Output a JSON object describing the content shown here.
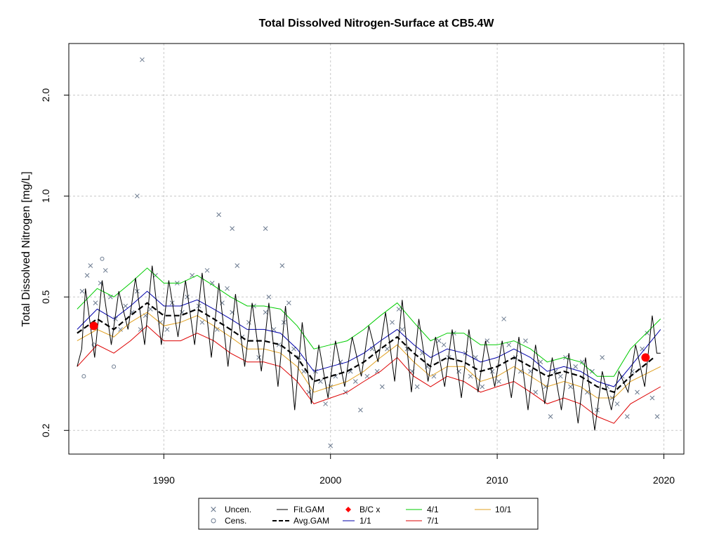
{
  "chart_data": {
    "type": "line",
    "title": "Total Dissolved Nitrogen-Surface at CB5.4W",
    "xlabel": "",
    "ylabel": "Total Dissolved Nitrogen [mg/L]",
    "y_scale": "log",
    "xlim": [
      1984.3,
      2021.2
    ],
    "ylim": [
      0.17,
      2.85
    ],
    "x_ticks": [
      1990,
      2000,
      2010,
      2020
    ],
    "y_ticks": [
      0.2,
      0.5,
      1.0,
      2.0
    ],
    "x_tick_labels": [
      "1990",
      "2000",
      "2010",
      "2020"
    ],
    "y_tick_labels": [
      "0.2",
      "0.5",
      "1.0",
      "2.0"
    ],
    "grid": true,
    "legend_position": "bottom",
    "legend": [
      {
        "label": "Uncen.",
        "symbol": "x",
        "color": "#6b7a8f"
      },
      {
        "label": "Cens.",
        "symbol": "o",
        "color": "#6b7a8f"
      },
      {
        "label": "Fit.GAM",
        "symbol": "line",
        "color": "#000000"
      },
      {
        "label": "Avg.GAM",
        "symbol": "dash",
        "color": "#000000"
      },
      {
        "label": "B/C x",
        "symbol": "diamond",
        "color": "#ff0000"
      },
      {
        "label": "1/1",
        "symbol": "line",
        "color": "#0000aa"
      },
      {
        "label": "4/1",
        "symbol": "line",
        "color": "#00cc00"
      },
      {
        "label": "7/1",
        "symbol": "line",
        "color": "#dd0000"
      },
      {
        "label": "10/1",
        "symbol": "line",
        "color": "#e0a020"
      }
    ],
    "series": [
      {
        "name": "Avg.GAM",
        "color": "#000000",
        "style": "dashed",
        "x": [
          1984.8,
          1986,
          1987,
          1988,
          1989,
          1990,
          1991,
          1992,
          1993,
          1994,
          1995,
          1996,
          1997,
          1998,
          1999,
          2000,
          2001,
          2002,
          2003,
          2004,
          2005,
          2006,
          2007,
          2008,
          2009,
          2010,
          2011,
          2012,
          2013,
          2014,
          2015,
          2016,
          2017,
          2018,
          2019.4
        ],
        "y": [
          0.39,
          0.43,
          0.4,
          0.44,
          0.48,
          0.44,
          0.44,
          0.46,
          0.43,
          0.4,
          0.37,
          0.37,
          0.36,
          0.33,
          0.28,
          0.29,
          0.3,
          0.32,
          0.35,
          0.38,
          0.34,
          0.31,
          0.33,
          0.32,
          0.3,
          0.31,
          0.33,
          0.31,
          0.29,
          0.3,
          0.29,
          0.27,
          0.26,
          0.29,
          0.33
        ]
      },
      {
        "name": "1/1",
        "color": "#0000aa",
        "style": "solid",
        "x": [
          1984.8,
          1986,
          1987,
          1988,
          1989,
          1990,
          1991,
          1992,
          1993,
          1994,
          1995,
          1996,
          1997,
          1998,
          1999,
          2000,
          2001,
          2002,
          2003,
          2004,
          2005,
          2006,
          2007,
          2008,
          2009,
          2010,
          2011,
          2012,
          2013,
          2014,
          2015,
          2016,
          2017,
          2018,
          2019.8
        ],
        "y": [
          0.4,
          0.46,
          0.43,
          0.47,
          0.52,
          0.47,
          0.47,
          0.49,
          0.46,
          0.43,
          0.4,
          0.4,
          0.39,
          0.35,
          0.3,
          0.31,
          0.32,
          0.34,
          0.37,
          0.4,
          0.36,
          0.33,
          0.35,
          0.34,
          0.32,
          0.33,
          0.35,
          0.33,
          0.3,
          0.31,
          0.3,
          0.28,
          0.27,
          0.31,
          0.4
        ]
      },
      {
        "name": "4/1",
        "color": "#00cc00",
        "style": "solid",
        "x": [
          1984.8,
          1986,
          1987,
          1988,
          1989,
          1990,
          1991,
          1992,
          1993,
          1994,
          1995,
          1996,
          1997,
          1998,
          1999,
          2000,
          2001,
          2002,
          2003,
          2004,
          2005,
          2006,
          2007,
          2008,
          2009,
          2010,
          2011,
          2012,
          2013,
          2014,
          2015,
          2016,
          2017,
          2018,
          2019.8
        ],
        "y": [
          0.46,
          0.53,
          0.5,
          0.55,
          0.61,
          0.55,
          0.55,
          0.58,
          0.54,
          0.5,
          0.47,
          0.47,
          0.46,
          0.41,
          0.35,
          0.36,
          0.37,
          0.4,
          0.44,
          0.48,
          0.42,
          0.37,
          0.39,
          0.39,
          0.36,
          0.36,
          0.37,
          0.35,
          0.32,
          0.33,
          0.32,
          0.29,
          0.29,
          0.35,
          0.43
        ]
      },
      {
        "name": "7/1",
        "color": "#dd0000",
        "style": "solid",
        "x": [
          1984.8,
          1986,
          1987,
          1988,
          1989,
          1990,
          1991,
          1992,
          1993,
          1994,
          1995,
          1996,
          1997,
          1998,
          1999,
          2000,
          2001,
          2002,
          2003,
          2004,
          2005,
          2006,
          2007,
          2008,
          2009,
          2010,
          2011,
          2012,
          2013,
          2014,
          2015,
          2016,
          2017,
          2018,
          2019.8
        ],
        "y": [
          0.31,
          0.36,
          0.34,
          0.37,
          0.41,
          0.37,
          0.37,
          0.39,
          0.37,
          0.34,
          0.32,
          0.32,
          0.31,
          0.28,
          0.24,
          0.25,
          0.26,
          0.28,
          0.3,
          0.33,
          0.29,
          0.27,
          0.29,
          0.28,
          0.26,
          0.27,
          0.28,
          0.26,
          0.24,
          0.25,
          0.24,
          0.22,
          0.21,
          0.24,
          0.27
        ]
      },
      {
        "name": "10/1",
        "color": "#e0a020",
        "style": "solid",
        "x": [
          1984.8,
          1986,
          1987,
          1988,
          1989,
          1990,
          1991,
          1992,
          1993,
          1994,
          1995,
          1996,
          1997,
          1998,
          1999,
          2000,
          2001,
          2002,
          2003,
          2004,
          2005,
          2006,
          2007,
          2008,
          2009,
          2010,
          2011,
          2012,
          2013,
          2014,
          2015,
          2016,
          2017,
          2018,
          2019.8
        ],
        "y": [
          0.37,
          0.4,
          0.38,
          0.42,
          0.45,
          0.41,
          0.42,
          0.44,
          0.41,
          0.38,
          0.35,
          0.35,
          0.34,
          0.31,
          0.26,
          0.27,
          0.28,
          0.3,
          0.33,
          0.36,
          0.32,
          0.29,
          0.31,
          0.31,
          0.28,
          0.29,
          0.31,
          0.29,
          0.27,
          0.28,
          0.27,
          0.25,
          0.25,
          0.28,
          0.31
        ]
      },
      {
        "name": "Fit.GAM",
        "color": "#000000",
        "style": "solid",
        "seasonal": true,
        "x": [
          1984.8,
          1985.3,
          1986.3,
          1987.3,
          1988.3,
          1989.3,
          1990.3,
          1991.3,
          1992.3,
          1993.3,
          1994.3,
          1995.3,
          1996.3,
          1997.3,
          1998.3,
          1999.3,
          2000.3,
          2001.3,
          2002.3,
          2003.3,
          2004.3,
          2005.3,
          2006.3,
          2007.3,
          2008.3,
          2009.3,
          2010.3,
          2011.3,
          2012.3,
          2013.3,
          2014.3,
          2015.3,
          2016.3,
          2017.3,
          2018.3,
          2019.3,
          2019.8
        ],
        "y": [
          0.31,
          0.53,
          0.56,
          0.52,
          0.57,
          0.62,
          0.56,
          0.56,
          0.59,
          0.55,
          0.51,
          0.48,
          0.48,
          0.47,
          0.42,
          0.36,
          0.37,
          0.38,
          0.41,
          0.45,
          0.49,
          0.43,
          0.38,
          0.4,
          0.4,
          0.37,
          0.37,
          0.38,
          0.36,
          0.33,
          0.34,
          0.33,
          0.3,
          0.3,
          0.36,
          0.44,
          0.34
        ],
        "y_low": [
          0.31,
          0.35,
          0.33,
          0.36,
          0.4,
          0.36,
          0.36,
          0.38,
          0.36,
          0.33,
          0.31,
          0.31,
          0.3,
          0.27,
          0.23,
          0.24,
          0.25,
          0.27,
          0.29,
          0.32,
          0.28,
          0.26,
          0.28,
          0.27,
          0.25,
          0.26,
          0.27,
          0.25,
          0.23,
          0.24,
          0.23,
          0.21,
          0.2,
          0.23,
          0.26,
          0.27,
          0.34
        ]
      },
      {
        "name": "B/C x",
        "color": "#ff0000",
        "x": [
          1985.8,
          2018.9
        ],
        "y": [
          0.41,
          0.33
        ]
      },
      {
        "name": "Uncen.",
        "color": "#6b7a8f",
        "x": [
          1985.1,
          1985.4,
          1985.6,
          1985.9,
          1986.2,
          1986.5,
          1986.8,
          1987.1,
          1987.4,
          1987.7,
          1988.1,
          1988.4,
          1988.6,
          1988.9,
          1989.2,
          1989.5,
          1989.8,
          1990.2,
          1990.5,
          1990.8,
          1991.1,
          1991.4,
          1991.7,
          1992.1,
          1992.3,
          1992.6,
          1992.9,
          1993.2,
          1993.5,
          1993.8,
          1994.1,
          1994.4,
          1994.7,
          1995.1,
          1995.4,
          1995.7,
          1996.1,
          1996.3,
          1996.6,
          1996.9,
          1997.2,
          1997.5,
          1997.8,
          1998.1,
          1998.4,
          1998.7,
          1999.1,
          1999.4,
          1999.7,
          2000.0,
          2000.3,
          2000.6,
          2000.9,
          2001.2,
          2001.5,
          2001.8,
          2002.2,
          2002.5,
          2002.8,
          2003.1,
          2003.4,
          2003.7,
          2004.1,
          2004.3,
          2004.6,
          2004.9,
          2005.2,
          2005.5,
          2005.8,
          2006.2,
          2006.5,
          2006.8,
          2007.1,
          2007.4,
          2007.7,
          2008.1,
          2008.4,
          2008.7,
          2009.1,
          2009.4,
          2009.7,
          2010.1,
          2010.4,
          2010.7,
          2011.1,
          2011.4,
          2011.7,
          2012.0,
          2012.3,
          2012.6,
          2012.9,
          2013.2,
          2013.5,
          2013.8,
          2014.1,
          2014.4,
          2014.7,
          2015.1,
          2015.4,
          2015.7,
          2016.0,
          2016.3,
          2016.6,
          2016.9,
          2017.2,
          2017.5,
          2017.8,
          2018.1,
          2018.4,
          2018.7,
          2019.0,
          2019.3,
          2019.6,
          1988.7,
          1988.4,
          1996.1,
          1993.3,
          1994.1,
          1997.1,
          2000.0
        ],
        "y": [
          0.52,
          0.58,
          0.62,
          0.48,
          0.55,
          0.6,
          0.5,
          0.43,
          0.4,
          0.47,
          0.45,
          0.52,
          0.4,
          0.44,
          0.46,
          0.58,
          0.42,
          0.4,
          0.48,
          0.55,
          0.45,
          0.5,
          0.58,
          0.47,
          0.42,
          0.6,
          0.55,
          0.4,
          0.48,
          0.53,
          0.45,
          0.62,
          0.38,
          0.42,
          0.47,
          0.33,
          0.45,
          0.5,
          0.4,
          0.36,
          0.42,
          0.48,
          0.35,
          0.33,
          0.3,
          0.26,
          0.3,
          0.28,
          0.24,
          0.27,
          0.29,
          0.32,
          0.26,
          0.3,
          0.28,
          0.23,
          0.29,
          0.35,
          0.3,
          0.27,
          0.35,
          0.42,
          0.46,
          0.4,
          0.35,
          0.3,
          0.27,
          0.34,
          0.31,
          0.29,
          0.37,
          0.36,
          0.33,
          0.39,
          0.3,
          0.34,
          0.29,
          0.33,
          0.27,
          0.37,
          0.3,
          0.28,
          0.43,
          0.36,
          0.33,
          0.3,
          0.37,
          0.3,
          0.26,
          0.32,
          0.27,
          0.22,
          0.3,
          0.29,
          0.33,
          0.27,
          0.31,
          0.32,
          0.26,
          0.3,
          0.23,
          0.33,
          0.27,
          0.25,
          0.24,
          0.29,
          0.22,
          0.3,
          0.26,
          0.35,
          0.39,
          0.25,
          0.22,
          2.55,
          1.0,
          0.8,
          0.88,
          0.8,
          0.62,
          0.18
        ]
      },
      {
        "name": "Cens.",
        "color": "#6b7a8f",
        "x": [
          1985.2,
          1985.8,
          1986.3,
          1987.0
        ],
        "y": [
          0.29,
          0.36,
          0.65,
          0.31
        ]
      }
    ]
  }
}
